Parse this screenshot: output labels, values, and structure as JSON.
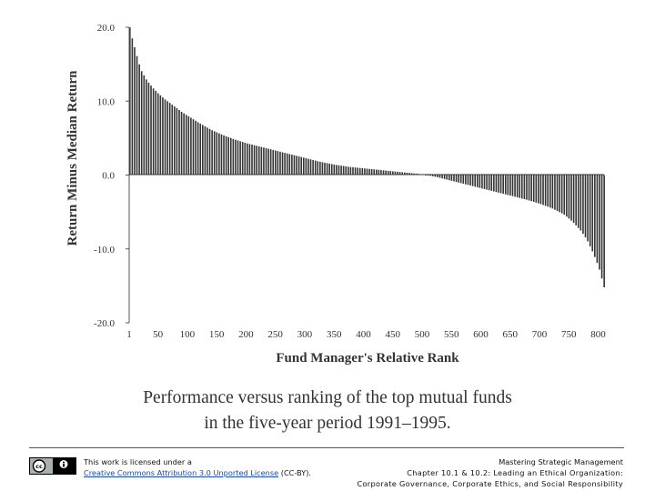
{
  "caption": {
    "line1": "Performance versus ranking of the top mutual funds",
    "line2": "in the five-year period 1991–1995."
  },
  "footer": {
    "license_prefix": "This work is licensed under a",
    "license_link": "Creative Commons Attribution 3.0 Unported License",
    "license_suffix": " (CC-BY).",
    "course_title": "Mastering Strategic Management",
    "chapter_line": "Chapter 10.1 & 10.2: Leading an Ethical Organization:",
    "topic_line": "Corporate Governance, Corporate Ethics, and Social Responsibility"
  },
  "colors": {
    "bar": "#333333",
    "axis": "#555555",
    "text": "#333333",
    "link": "#1a49a8"
  },
  "icons": {
    "license_badge": "creative-commons-by-icon"
  },
  "chart_data": {
    "type": "bar",
    "title": "",
    "xlabel": "Fund Manager's Relative Rank",
    "ylabel": "Return Minus Median Return",
    "xlim": [
      1,
      810
    ],
    "ylim": [
      -20.0,
      20.0
    ],
    "x_ticks": [
      "1",
      "50",
      "100",
      "150",
      "200",
      "250",
      "300",
      "350",
      "400",
      "450",
      "500",
      "550",
      "600",
      "650",
      "700",
      "750",
      "800"
    ],
    "y_ticks": [
      "20.0",
      "10.0",
      "0.0",
      "-10.0",
      "-20.0"
    ],
    "grid": false,
    "legend": "none",
    "series": [
      {
        "x": [
          1,
          5,
          10,
          15,
          20,
          30,
          40,
          50,
          60,
          70,
          80,
          90,
          100,
          120,
          140,
          160,
          180,
          200,
          225,
          250,
          275,
          300,
          325,
          350,
          375,
          400,
          425,
          450,
          475,
          500,
          525,
          550,
          575,
          600,
          625,
          650,
          675,
          700,
          720,
          740,
          755,
          770,
          780,
          790,
          800,
          805,
          810
        ],
        "values": [
          20.0,
          18.5,
          17.0,
          15.5,
          14.2,
          12.8,
          11.8,
          11.0,
          10.3,
          9.7,
          9.1,
          8.5,
          8.0,
          7.0,
          6.1,
          5.4,
          4.8,
          4.3,
          3.8,
          3.3,
          2.8,
          2.3,
          1.8,
          1.4,
          1.1,
          0.9,
          0.7,
          0.5,
          0.3,
          0.1,
          -0.3,
          -0.8,
          -1.3,
          -1.8,
          -2.3,
          -2.8,
          -3.3,
          -3.9,
          -4.5,
          -5.3,
          -6.3,
          -7.6,
          -8.8,
          -10.5,
          -12.5,
          -14.0,
          -15.5
        ]
      }
    ]
  }
}
